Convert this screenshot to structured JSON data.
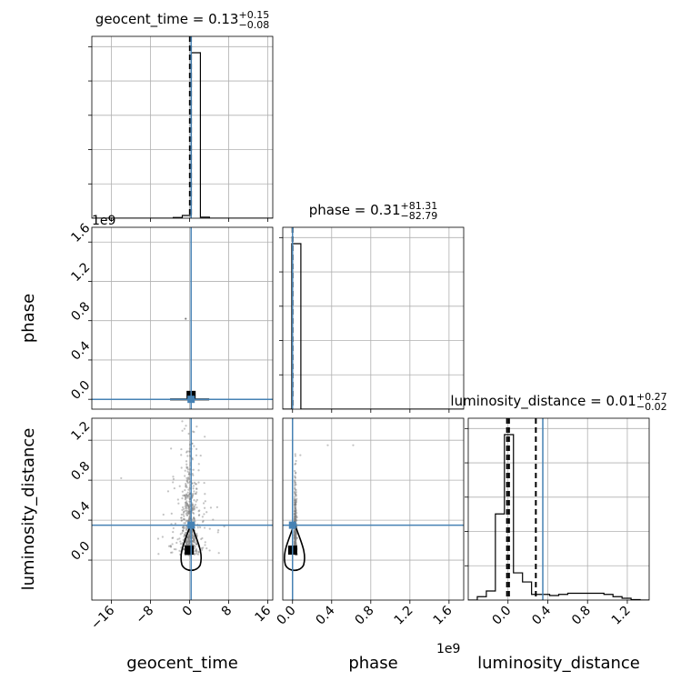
{
  "chart_data": {
    "type": "corner",
    "parameters": [
      {
        "name": "geocent_time",
        "xlabel": "geocent_time",
        "title_main": "geocent_time = 0.13",
        "title_sup": "+0.15",
        "title_sub": "−0.08",
        "median": 0.13,
        "err_plus": 0.15,
        "err_minus": 0.08,
        "truth": 0.3,
        "quantiles": [
          0.05,
          0.13,
          0.28
        ],
        "range": [
          -20,
          17
        ],
        "ticks": [
          -16,
          -8,
          0,
          8,
          16
        ],
        "tick_labels": [
          "−16",
          "−8",
          "0",
          "8",
          "16"
        ]
      },
      {
        "name": "phase",
        "xlabel": "phase",
        "ylabel": "phase",
        "title_main": "phase = 0.31",
        "title_sup": "+81.31",
        "title_sub": "−82.79",
        "median": 0.31,
        "err_plus": 81.31,
        "err_minus": 82.79,
        "truth": 0.0,
        "quantiles": [
          0.0
        ],
        "range": [
          -0.1,
          1.75
        ],
        "ticks": [
          0.0,
          0.4,
          0.8,
          1.2,
          1.6
        ],
        "tick_labels": [
          "0.0",
          "0.4",
          "0.8",
          "1.2",
          "1.6"
        ],
        "offset_label": "1e9"
      },
      {
        "name": "luminosity_distance",
        "xlabel": "luminosity_distance",
        "ylabel": "luminosity_distance",
        "title_main": "luminosity_distance = 0.01",
        "title_sup": "+0.27",
        "title_sub": "−0.02",
        "median": 0.01,
        "err_plus": 0.27,
        "err_minus": 0.02,
        "truth": 0.35,
        "quantiles": [
          -0.01,
          0.01,
          0.28
        ],
        "range": [
          -0.4,
          1.42
        ],
        "ticks": [
          0.0,
          0.4,
          0.8,
          1.2
        ],
        "tick_labels": [
          "0.0",
          "0.4",
          "0.8",
          "1.2"
        ]
      }
    ],
    "histograms": {
      "geocent_time": {
        "bin_edges": [
          -20,
          -18.15,
          -16.3,
          -14.45,
          -12.6,
          -10.75,
          -8.9,
          -7.05,
          -5.2,
          -3.35,
          -1.5,
          0.35,
          2.2,
          4.05,
          5.9,
          7.75,
          9.6,
          11.45,
          13.3,
          15.15,
          17
        ],
        "counts": [
          0,
          0,
          0,
          0,
          0,
          0,
          0,
          0,
          0,
          2,
          8,
          480,
          3,
          0,
          0,
          0,
          0,
          0,
          0,
          0
        ]
      },
      "phase": {
        "bin_edges": [
          -0.1,
          -0.0075,
          0.085,
          0.1775,
          0.27,
          0.3625,
          0.455,
          0.5475,
          0.64,
          0.7325,
          0.825,
          0.9175,
          1.01,
          1.1025,
          1.195,
          1.2875,
          1.38,
          1.4725,
          1.565,
          1.6575,
          1.75
        ],
        "counts": [
          0,
          500,
          0,
          0,
          0,
          0,
          0,
          0,
          0,
          0,
          0,
          0,
          0,
          0,
          0,
          0,
          0,
          0,
          0,
          0
        ]
      },
      "luminosity_distance": {
        "bin_edges": [
          -0.4,
          -0.309,
          -0.218,
          -0.127,
          -0.036,
          0.055,
          0.146,
          0.237,
          0.328,
          0.419,
          0.51,
          0.601,
          0.692,
          0.783,
          0.874,
          0.965,
          1.056,
          1.147,
          1.238,
          1.329,
          1.42
        ],
        "counts": [
          0,
          1.5,
          4,
          38,
          73,
          12,
          8,
          2.5,
          2.5,
          2,
          2.5,
          3,
          3,
          3,
          3,
          2.5,
          1.5,
          0.8,
          0.2,
          0
        ]
      }
    },
    "axes_notes": {
      "y_ticks_marginals_unlabeled": true,
      "grid": true
    }
  }
}
